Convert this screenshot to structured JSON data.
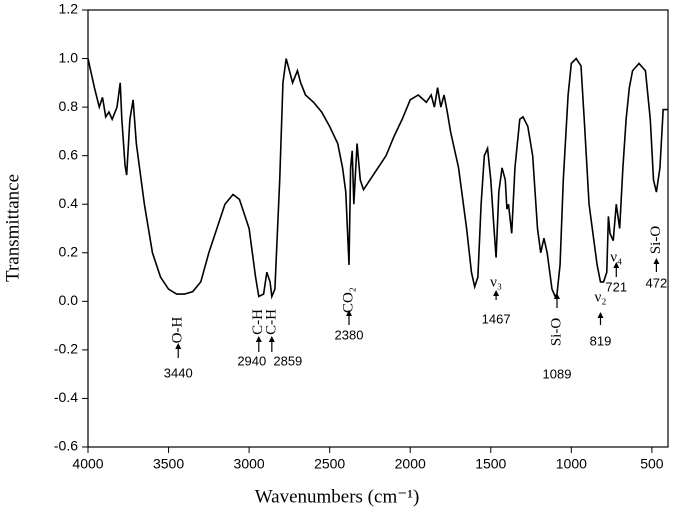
{
  "chart_data": {
    "type": "line",
    "x_label": "Wavenumbers (cm⁻¹)",
    "y_label": "Transmittance",
    "xlim": [
      4000,
      400
    ],
    "ylim": [
      -0.6,
      1.2
    ],
    "xticks": [
      4000,
      3500,
      3000,
      2500,
      2000,
      1500,
      1000,
      500
    ],
    "yticks": [
      1.2,
      {
        "value": 1.0,
        "label": "1.0"
      },
      0.8,
      0.6,
      0.4,
      0.2,
      {
        "value": 0.0,
        "label": "0.0"
      },
      -0.2,
      -0.4,
      -0.6
    ],
    "x": [
      4000,
      3960,
      3930,
      3910,
      3890,
      3870,
      3850,
      3820,
      3800,
      3790,
      3770,
      3760,
      3740,
      3720,
      3700,
      3650,
      3600,
      3550,
      3500,
      3450,
      3400,
      3350,
      3300,
      3250,
      3200,
      3150,
      3100,
      3060,
      3000,
      2960,
      2940,
      2910,
      2890,
      2870,
      2859,
      2840,
      2810,
      2790,
      2770,
      2750,
      2730,
      2700,
      2680,
      2650,
      2600,
      2550,
      2500,
      2450,
      2420,
      2400,
      2390,
      2380,
      2370,
      2360,
      2350,
      2330,
      2310,
      2290,
      2250,
      2200,
      2150,
      2100,
      2050,
      2000,
      1950,
      1900,
      1870,
      1850,
      1830,
      1810,
      1790,
      1770,
      1750,
      1700,
      1650,
      1620,
      1600,
      1580,
      1560,
      1540,
      1520,
      1500,
      1480,
      1467,
      1450,
      1430,
      1410,
      1400,
      1390,
      1370,
      1350,
      1320,
      1300,
      1270,
      1240,
      1210,
      1190,
      1170,
      1150,
      1120,
      1100,
      1089,
      1070,
      1050,
      1020,
      1000,
      970,
      940,
      920,
      890,
      860,
      840,
      819,
      800,
      780,
      770,
      760,
      740,
      721,
      700,
      680,
      660,
      640,
      620,
      580,
      540,
      510,
      490,
      472,
      450,
      430,
      402
    ],
    "series": [
      {
        "color": "#000000",
        "values": [
          1.0,
          0.88,
          0.8,
          0.84,
          0.76,
          0.78,
          0.75,
          0.8,
          0.9,
          0.75,
          0.56,
          0.52,
          0.75,
          0.83,
          0.65,
          0.4,
          0.2,
          0.1,
          0.05,
          0.03,
          0.03,
          0.04,
          0.08,
          0.2,
          0.3,
          0.4,
          0.44,
          0.42,
          0.3,
          0.1,
          0.02,
          0.03,
          0.12,
          0.08,
          0.02,
          0.05,
          0.5,
          0.9,
          1.0,
          0.95,
          0.9,
          0.95,
          0.9,
          0.85,
          0.82,
          0.78,
          0.72,
          0.65,
          0.55,
          0.45,
          0.3,
          0.15,
          0.55,
          0.62,
          0.4,
          0.65,
          0.5,
          0.46,
          0.5,
          0.55,
          0.6,
          0.68,
          0.75,
          0.83,
          0.85,
          0.82,
          0.85,
          0.8,
          0.88,
          0.8,
          0.85,
          0.78,
          0.7,
          0.55,
          0.3,
          0.12,
          0.06,
          0.1,
          0.4,
          0.6,
          0.63,
          0.5,
          0.3,
          0.18,
          0.45,
          0.55,
          0.5,
          0.38,
          0.4,
          0.28,
          0.55,
          0.75,
          0.76,
          0.72,
          0.6,
          0.3,
          0.2,
          0.26,
          0.2,
          0.05,
          0.02,
          0.03,
          0.15,
          0.5,
          0.85,
          0.98,
          1.0,
          0.97,
          0.75,
          0.4,
          0.25,
          0.15,
          0.08,
          0.08,
          0.12,
          0.35,
          0.28,
          0.25,
          0.4,
          0.3,
          0.55,
          0.75,
          0.88,
          0.95,
          0.98,
          0.95,
          0.75,
          0.5,
          0.45,
          0.55,
          0.79,
          0.79
        ]
      }
    ],
    "annotations": [
      {
        "label": "O-H",
        "wavenumber": 3440
      },
      {
        "label": "C-H",
        "wavenumber": 2940
      },
      {
        "label": "C-H",
        "wavenumber": 2859
      },
      {
        "label": "CO₂",
        "wavenumber": 2380
      },
      {
        "label": "ν₃",
        "wavenumber": 1467
      },
      {
        "label": "Si-O",
        "wavenumber": 1089
      },
      {
        "label": "ν₂",
        "wavenumber": 819
      },
      {
        "label": "ν₄",
        "wavenumber": 721
      },
      {
        "label": "Si-O",
        "wavenumber": 472
      }
    ]
  }
}
